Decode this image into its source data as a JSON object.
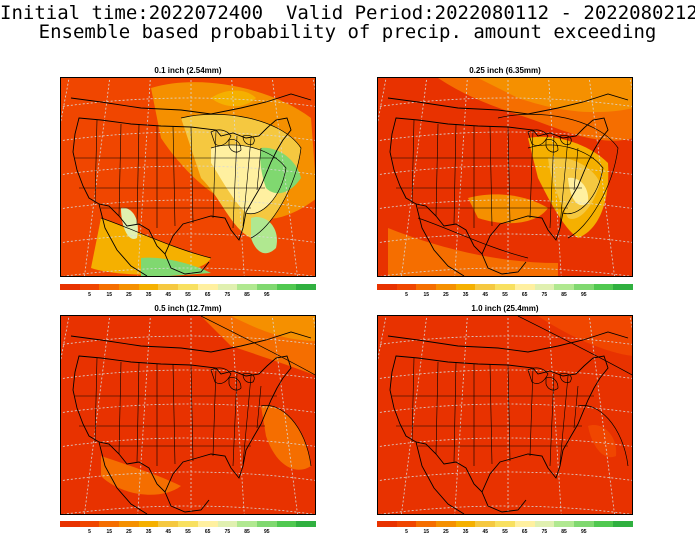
{
  "header": {
    "line1": "Initial time:2022072400  Valid Period:2022080112 - 2022080212",
    "line2": "Ensemble based probability of precip. amount exceeding"
  },
  "panels": [
    {
      "title": "0.1 inch (2.54mm)",
      "regime": "low"
    },
    {
      "title": "0.25 inch (6.35mm)",
      "regime": "mid"
    },
    {
      "title": "0.5 inch (12.7mm)",
      "regime": "high"
    },
    {
      "title": "1.0 inch (25.4mm)",
      "regime": "max"
    }
  ],
  "colorbar": {
    "colors": [
      "#e83200",
      "#f04600",
      "#f56e00",
      "#f59000",
      "#f5b000",
      "#f5c840",
      "#f8e060",
      "#fff0a0",
      "#e0f0b0",
      "#b0e890",
      "#80d870",
      "#50c850",
      "#30b040"
    ],
    "labels": [
      "5",
      "15",
      "25",
      "35",
      "45",
      "55",
      "65",
      "75",
      "85",
      "95"
    ]
  }
}
